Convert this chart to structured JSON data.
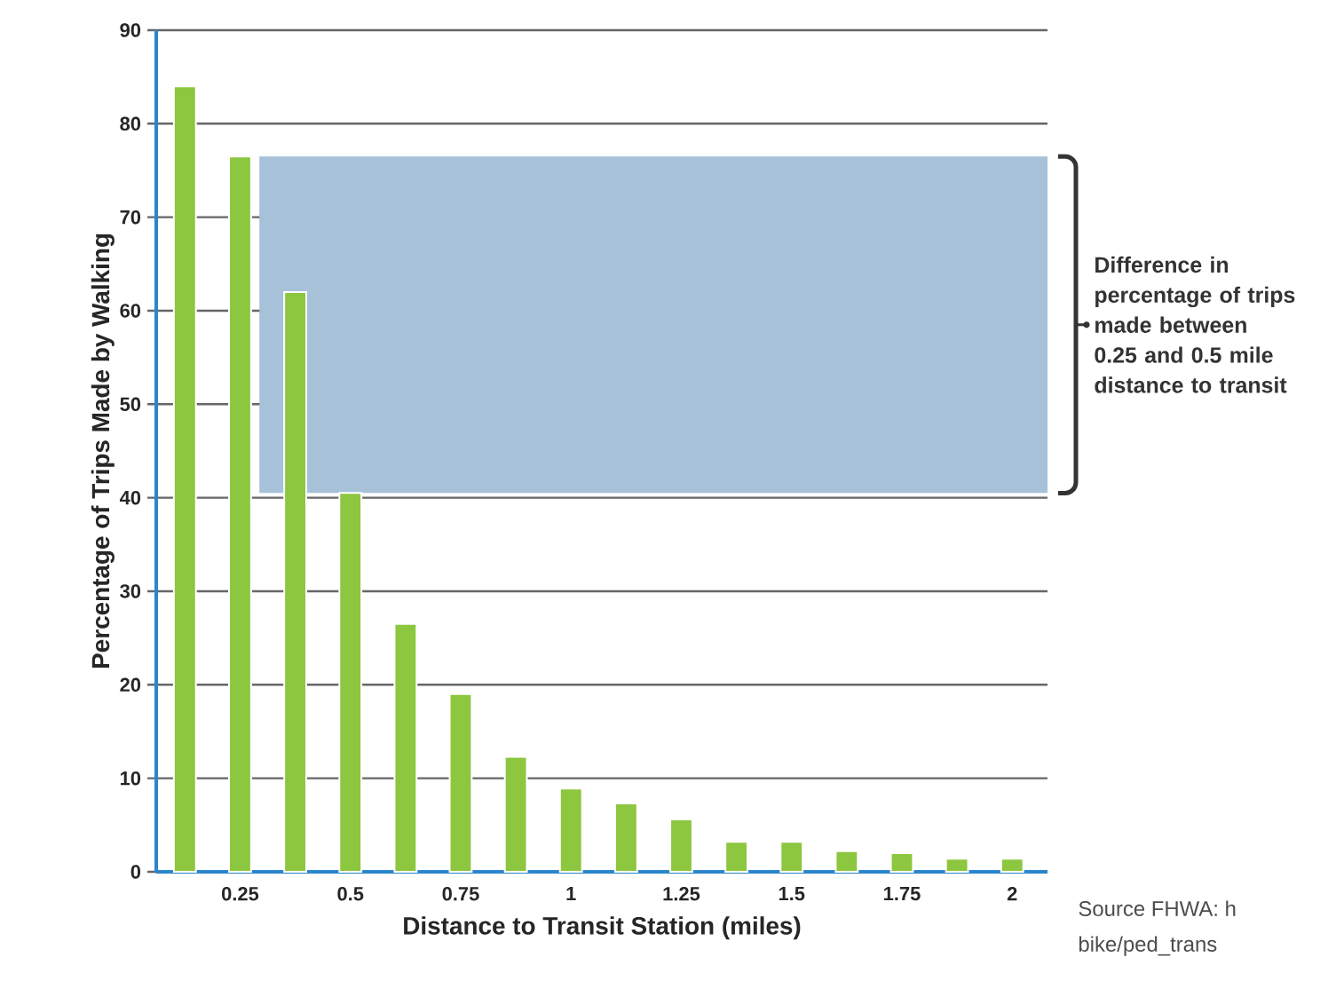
{
  "chart_data": {
    "type": "bar",
    "xlabel": "Distance to Transit Station (miles)",
    "ylabel": "Percentage of Trips Made by Walking",
    "x": [
      0.125,
      0.25,
      0.375,
      0.5,
      0.625,
      0.75,
      0.875,
      1,
      1.125,
      1.25,
      1.375,
      1.5,
      1.625,
      1.75,
      1.875,
      2
    ],
    "series": [
      {
        "color": "#8dc63f",
        "values": [
          84,
          76.5,
          62,
          40.5,
          26.5,
          19,
          12.3,
          8.9,
          7.3,
          5.6,
          3.2,
          3.2,
          2.2,
          2.0,
          1.4,
          1.4
        ]
      }
    ],
    "xlim": [
      0.06,
      2.08
    ],
    "xticks": [
      0.25,
      0.5,
      0.75,
      1,
      1.25,
      1.5,
      1.75,
      2
    ],
    "ylim": [
      0,
      90
    ],
    "yticks": [
      0,
      10,
      20,
      30,
      40,
      50,
      60,
      70,
      80,
      90
    ],
    "grid": "y",
    "bands": [
      {
        "axis": "y",
        "from": 40.5,
        "to": 76.5,
        "label": "Difference in percentage of trips made between 0.25 and 0.5 mile distance to transit",
        "color": "#a7c1d9"
      }
    ],
    "annotations": [
      "Source FHWA: h",
      "bike/ped_trans"
    ]
  }
}
